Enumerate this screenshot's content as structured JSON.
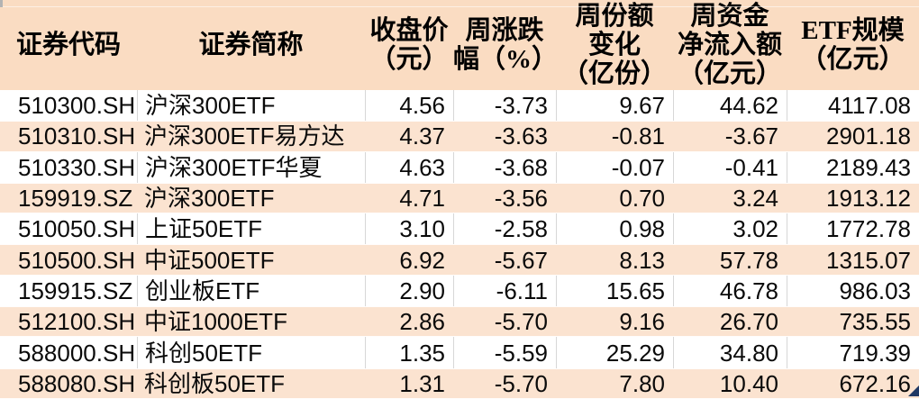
{
  "table": {
    "headers": [
      {
        "id": "code",
        "label": "证券代码"
      },
      {
        "id": "name",
        "label": "证券简称"
      },
      {
        "id": "close",
        "label": "收盘价\n（元）"
      },
      {
        "id": "chg",
        "label": "周涨跌\n幅（%）"
      },
      {
        "id": "share",
        "label": "周份额\n变化\n（亿份）"
      },
      {
        "id": "inflow",
        "label": "周资金\n净流入额\n（亿元）"
      },
      {
        "id": "scale",
        "label": "ETF规模\n（亿元）"
      }
    ],
    "rows": [
      {
        "code": "510300.SH",
        "name": "沪深300ETF",
        "close": "4.56",
        "chg": "-3.73",
        "share": "9.67",
        "inflow": "44.62",
        "scale": "4117.08"
      },
      {
        "code": "510310.SH",
        "name": "沪深300ETF易方达",
        "close": "4.37",
        "chg": "-3.63",
        "share": "-0.81",
        "inflow": "-3.67",
        "scale": "2901.18"
      },
      {
        "code": "510330.SH",
        "name": "沪深300ETF华夏",
        "close": "4.63",
        "chg": "-3.68",
        "share": "-0.07",
        "inflow": "-0.41",
        "scale": "2189.43"
      },
      {
        "code": "159919.SZ",
        "name": "沪深300ETF",
        "close": "4.71",
        "chg": "-3.56",
        "share": "0.70",
        "inflow": "3.24",
        "scale": "1913.12"
      },
      {
        "code": "510050.SH",
        "name": "上证50ETF",
        "close": "3.10",
        "chg": "-2.58",
        "share": "0.98",
        "inflow": "3.02",
        "scale": "1772.78"
      },
      {
        "code": "510500.SH",
        "name": "中证500ETF",
        "close": "6.92",
        "chg": "-5.67",
        "share": "8.13",
        "inflow": "57.78",
        "scale": "1315.07"
      },
      {
        "code": "159915.SZ",
        "name": "创业板ETF",
        "close": "2.90",
        "chg": "-6.11",
        "share": "15.65",
        "inflow": "46.78",
        "scale": "986.03"
      },
      {
        "code": "512100.SH",
        "name": "中证1000ETF",
        "close": "2.86",
        "chg": "-5.70",
        "share": "9.16",
        "inflow": "26.70",
        "scale": "735.55"
      },
      {
        "code": "588000.SH",
        "name": "科创50ETF",
        "close": "1.35",
        "chg": "-5.59",
        "share": "25.29",
        "inflow": "34.80",
        "scale": "719.39"
      },
      {
        "code": "588080.SH",
        "name": "科创板50ETF",
        "close": "1.31",
        "chg": "-5.70",
        "share": "7.80",
        "inflow": "10.40",
        "scale": "672.16"
      }
    ]
  },
  "colors": {
    "header_bg": "#fadcc2",
    "stripe_bg": "#fbe3d0",
    "white_row_bg": "#ffffff",
    "grid_line": "#d7d7d7",
    "text": "#000000",
    "fill_handle": "#1f3864"
  },
  "icons": {
    "fill_handle": "excel-fill-handle-triangle"
  }
}
